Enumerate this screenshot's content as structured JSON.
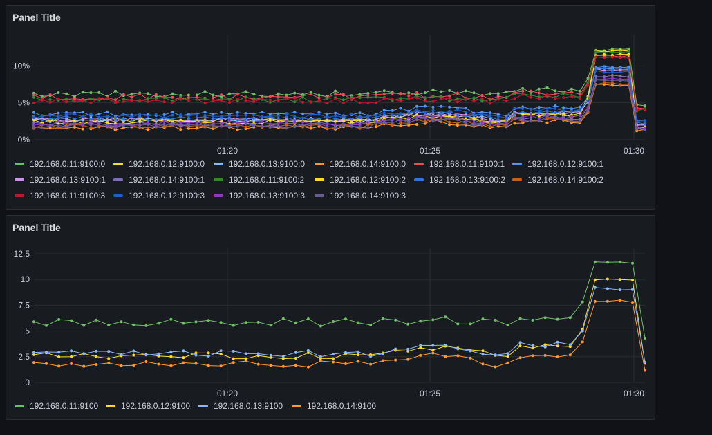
{
  "panels": [
    {
      "title": "Panel Title",
      "chart_data": {
        "type": "line",
        "x_ticks": [
          "01:20",
          "01:25",
          "01:30"
        ],
        "y_ticks": [
          "0%",
          "5%",
          "10%"
        ],
        "ylim": [
          0,
          13.5
        ],
        "y_unit": "%",
        "grid": true,
        "legend_position": "bottom",
        "x_start": "01:16",
        "x_end": "01:30",
        "points_per_series": 76,
        "series": [
          {
            "name": "192.168.0.11:9100:0",
            "color": "#73bf69",
            "level": 6.2,
            "spike": 12.2
          },
          {
            "name": "192.168.0.12:9100:0",
            "color": "#fade2a",
            "level": 2.6,
            "spike": 12.0
          },
          {
            "name": "192.168.0.13:9100:0",
            "color": "#8ab8ff",
            "level": 2.7,
            "spike": 9.7
          },
          {
            "name": "192.168.0.14:9100:0",
            "color": "#ff9830",
            "level": 1.6,
            "spike": 7.5
          },
          {
            "name": "192.168.0.11:9100:1",
            "color": "#f2495c",
            "level": 5.8,
            "spike": 11.3
          },
          {
            "name": "192.168.0.12:9100:1",
            "color": "#5794f2",
            "level": 3.5,
            "spike": 9.8
          },
          {
            "name": "192.168.0.13:9100:1",
            "color": "#ca95e5",
            "level": 2.7,
            "spike": 9.5
          },
          {
            "name": "192.168.0.14:9100:1",
            "color": "#806eb7",
            "level": 2.1,
            "spike": 8.6
          },
          {
            "name": "192.168.0.11:9100:2",
            "color": "#37872d",
            "level": 5.4,
            "spike": 11.8
          },
          {
            "name": "192.168.0.12:9100:2",
            "color": "#fade2a",
            "level": 2.4,
            "spike": 11.5
          },
          {
            "name": "192.168.0.13:9100:2",
            "color": "#3274d9",
            "level": 2.9,
            "spike": 9.6
          },
          {
            "name": "192.168.0.14:9100:2",
            "color": "#c4621c",
            "level": 1.8,
            "spike": 7.6
          },
          {
            "name": "192.168.0.11:9100:3",
            "color": "#c4162a",
            "level": 5.3,
            "spike": 11.2
          },
          {
            "name": "192.168.0.12:9100:3",
            "color": "#1f60c4",
            "level": 3.2,
            "spike": 9.2
          },
          {
            "name": "192.168.0.13:9100:3",
            "color": "#8f3bb8",
            "level": 2.2,
            "spike": 8.2
          },
          {
            "name": "192.168.0.14:9100:3",
            "color": "#6a5a9c",
            "level": 1.9,
            "spike": 8.0
          }
        ]
      }
    },
    {
      "title": "Panel Title",
      "chart_data": {
        "type": "line",
        "x_ticks": [
          "01:20",
          "01:25",
          "01:30"
        ],
        "y_ticks": [
          "0",
          "2.5",
          "5",
          "7.5",
          "10",
          "12.5"
        ],
        "ylim": [
          0,
          12.5
        ],
        "grid": true,
        "legend_position": "bottom",
        "x_start": "01:16",
        "x_end": "01:30",
        "points_per_series": 50,
        "series": [
          {
            "name": "192.168.0.11:9100",
            "color": "#73bf69",
            "level": 5.8,
            "spike": 11.6
          },
          {
            "name": "192.168.0.12:9100",
            "color": "#fade2a",
            "level": 2.6,
            "spike": 10.0
          },
          {
            "name": "192.168.0.13:9100",
            "color": "#8ab8ff",
            "level": 2.8,
            "spike": 9.1
          },
          {
            "name": "192.168.0.14:9100",
            "color": "#ff9830",
            "level": 1.8,
            "spike": 7.9
          }
        ]
      }
    }
  ]
}
